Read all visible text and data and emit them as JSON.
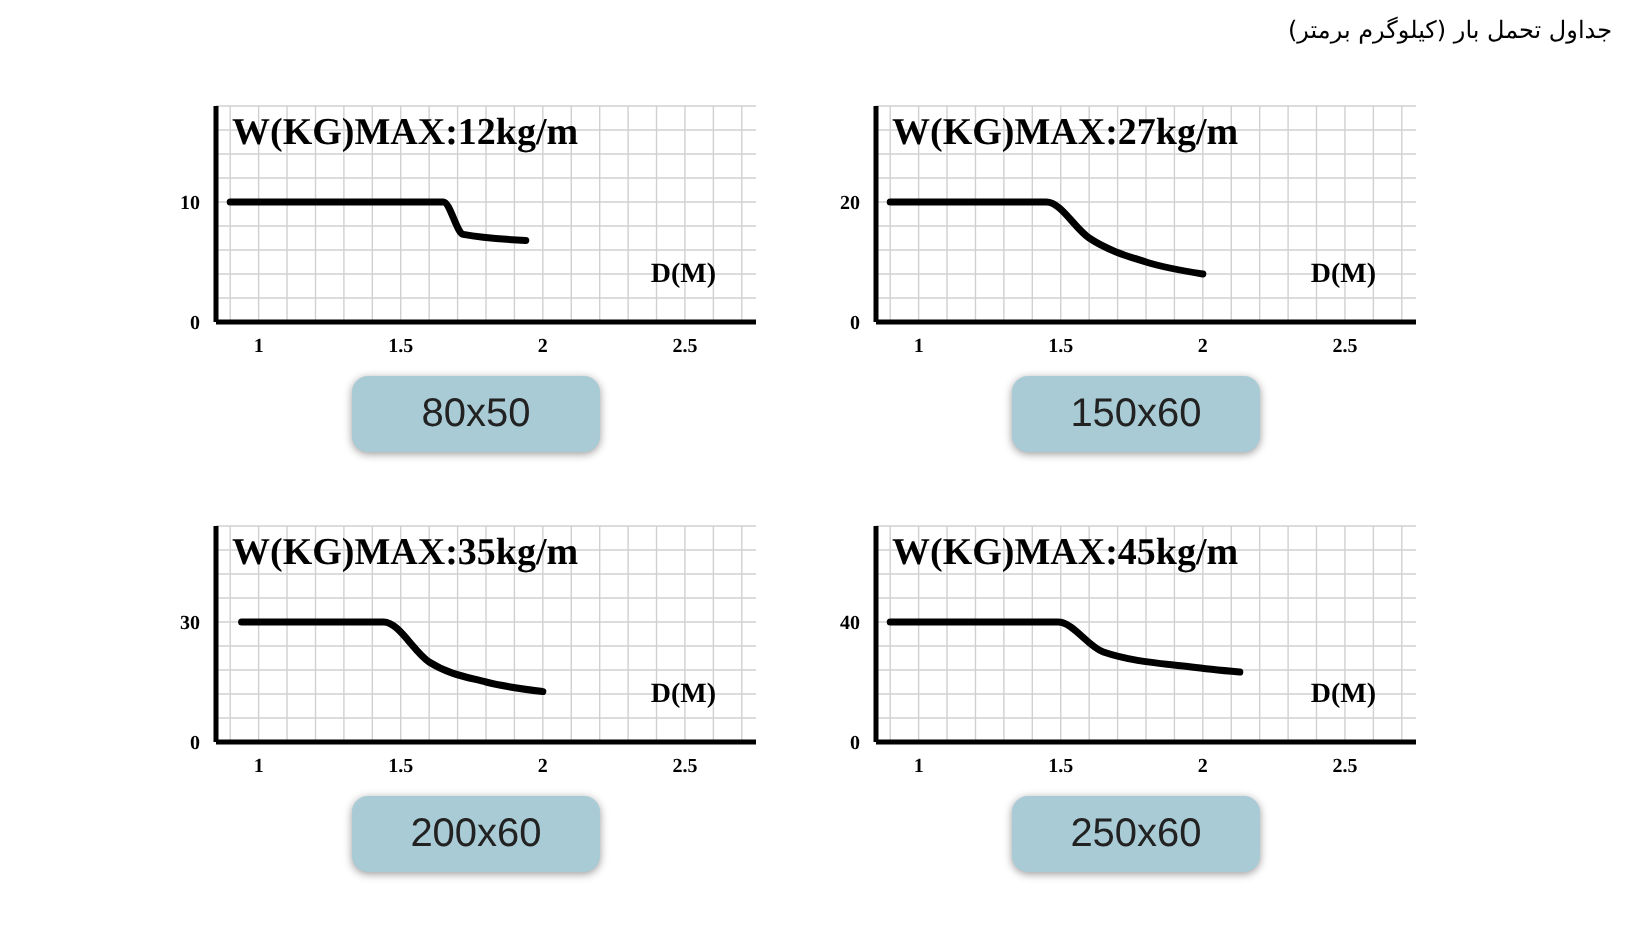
{
  "chart_data": [
    {
      "type": "line",
      "title": "80x50",
      "xlabel": "D(M)",
      "annotations": [
        "W(KG)MAX:12kg/m",
        "جداول تحمل بار (کیلوگرم برمتر)"
      ],
      "grid": true,
      "marker": "none",
      "line_style": "solid",
      "xlim": [
        0.85,
        2.75
      ],
      "xticks": [
        1,
        1.5,
        2,
        2.5
      ],
      "ylim": [
        0,
        18
      ],
      "yticks": [
        0,
        10
      ],
      "series": [
        {
          "color": "#000000",
          "x": [
            0.9,
            1.65,
            1.72,
            1.94
          ],
          "values": [
            10,
            10,
            7.3,
            6.8
          ]
        }
      ]
    },
    {
      "type": "line",
      "title": "150x60",
      "xlabel": "D(M)",
      "annotations": [
        "W(KG)MAX:27kg/m"
      ],
      "grid": true,
      "marker": "none",
      "line_style": "solid",
      "xlim": [
        0.85,
        2.75
      ],
      "xticks": [
        1,
        1.5,
        2,
        2.5
      ],
      "ylim": [
        0,
        36
      ],
      "yticks": [
        0,
        20
      ],
      "series": [
        {
          "color": "#000000",
          "x": [
            0.9,
            1.45,
            1.6,
            1.8,
            2.0
          ],
          "values": [
            20,
            20,
            14,
            10,
            8
          ]
        }
      ]
    },
    {
      "type": "line",
      "title": "200x60",
      "xlabel": "D(M)",
      "annotations": [
        "W(KG)MAX:35kg/m"
      ],
      "grid": true,
      "marker": "none",
      "line_style": "solid",
      "xlim": [
        0.85,
        2.75
      ],
      "xticks": [
        1,
        1.5,
        2,
        2.5
      ],
      "ylim": [
        0,
        54
      ],
      "yticks": [
        0,
        30
      ],
      "series": [
        {
          "color": "#000000",
          "x": [
            0.94,
            1.44,
            1.6,
            1.8,
            2.0
          ],
          "values": [
            30,
            30,
            20,
            15,
            12.6
          ]
        }
      ]
    },
    {
      "type": "line",
      "title": "250x60",
      "xlabel": "D(M)",
      "annotations": [
        "W(KG)MAX:45kg/m"
      ],
      "grid": true,
      "marker": "none",
      "line_style": "solid",
      "xlim": [
        0.85,
        2.75
      ],
      "xticks": [
        1,
        1.5,
        2,
        2.5
      ],
      "ylim": [
        0,
        72
      ],
      "yticks": [
        0,
        40
      ],
      "series": [
        {
          "color": "#000000",
          "x": [
            0.9,
            1.49,
            1.65,
            1.96,
            2.13
          ],
          "values": [
            40,
            40,
            30,
            25,
            23.3
          ]
        }
      ]
    }
  ]
}
